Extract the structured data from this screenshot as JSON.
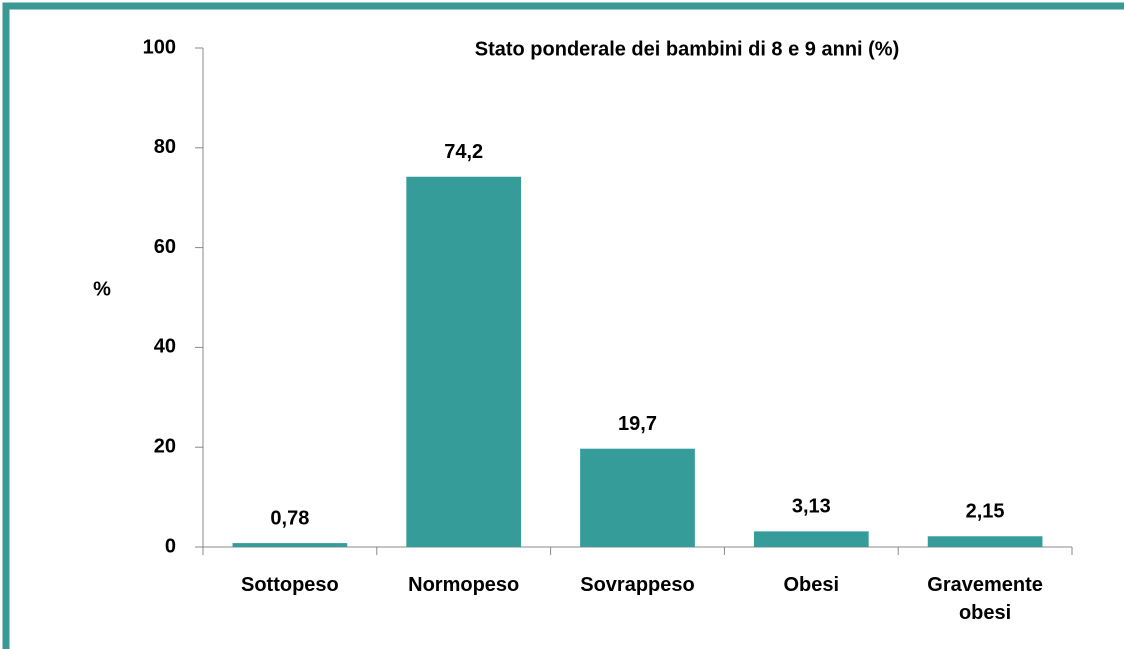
{
  "chart_data": {
    "type": "bar",
    "title": "Stato ponderale dei bambini di 8 e 9 anni (%)",
    "y_label": "%",
    "categories": [
      "Sottopeso",
      "Normopeso",
      "Sovrappeso",
      "Obesi",
      "Gravemente obesi"
    ],
    "values": [
      0.78,
      74.2,
      19.7,
      3.13,
      2.15
    ],
    "value_labels": [
      "0,78",
      "74,2",
      "19,7",
      "3,13",
      "2,15"
    ],
    "color": "#359c9a",
    "ylim": [
      0,
      100
    ],
    "yticks": [
      0,
      20,
      40,
      60,
      80,
      100
    ],
    "grid": false
  }
}
